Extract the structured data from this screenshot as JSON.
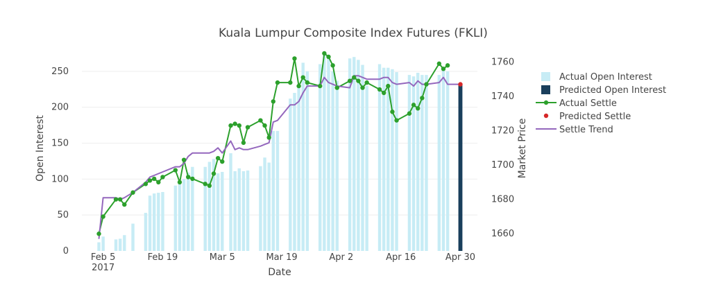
{
  "chart_data": {
    "type": "bar",
    "title": "Kuala Lumpur Composite Index Futures (FKLI)",
    "xlabel": "Date",
    "ylabel": "Open Interest",
    "y2label": "Market Price",
    "x_ticks": [
      {
        "date": "2017-02-05",
        "label": "Feb 5",
        "sublabel": "2017"
      },
      {
        "date": "2017-02-19",
        "label": "Feb 19",
        "sublabel": ""
      },
      {
        "date": "2017-03-05",
        "label": "Mar 5",
        "sublabel": ""
      },
      {
        "date": "2017-03-19",
        "label": "Mar 19",
        "sublabel": ""
      },
      {
        "date": "2017-04-02",
        "label": "Apr 2",
        "sublabel": ""
      },
      {
        "date": "2017-04-16",
        "label": "Apr 16",
        "sublabel": ""
      },
      {
        "date": "2017-04-30",
        "label": "Apr 30",
        "sublabel": ""
      }
    ],
    "xlim": [
      "2017-01-31",
      "2017-05-04"
    ],
    "ylim": [
      0,
      275
    ],
    "y_ticks": [
      0,
      50,
      100,
      150,
      200,
      250
    ],
    "y2lim": [
      1650,
      1765
    ],
    "y2_ticks": [
      1660,
      1680,
      1700,
      1720,
      1740,
      1760
    ],
    "grid": true,
    "legend_position": "right",
    "legend": [
      "Actual Open Interest",
      "Predicted Open Interest",
      "Actual Settle",
      "Predicted Settle",
      "Settle Trend"
    ],
    "colors": {
      "actual_open_interest": "#c7ecf5",
      "predicted_open_interest": "#1a3f5c",
      "actual_settle": "#2ca02c",
      "predicted_settle": "#d62728",
      "settle_trend": "#9467bd"
    },
    "series": [
      {
        "name": "Actual Open Interest",
        "kind": "bar",
        "axis": "y",
        "x": [
          "2017-02-04",
          "2017-02-05",
          "2017-02-08",
          "2017-02-09",
          "2017-02-10",
          "2017-02-12",
          "2017-02-15",
          "2017-02-16",
          "2017-02-17",
          "2017-02-18",
          "2017-02-19",
          "2017-02-22",
          "2017-02-23",
          "2017-02-24",
          "2017-02-25",
          "2017-02-26",
          "2017-03-01",
          "2017-03-02",
          "2017-03-03",
          "2017-03-04",
          "2017-03-05",
          "2017-03-07",
          "2017-03-08",
          "2017-03-09",
          "2017-03-10",
          "2017-03-11",
          "2017-03-14",
          "2017-03-15",
          "2017-03-16",
          "2017-03-17",
          "2017-03-18",
          "2017-03-21",
          "2017-03-22",
          "2017-03-23",
          "2017-03-24",
          "2017-03-25",
          "2017-03-28",
          "2017-03-29",
          "2017-03-30",
          "2017-03-31",
          "2017-04-01",
          "2017-04-04",
          "2017-04-05",
          "2017-04-06",
          "2017-04-07",
          "2017-04-08",
          "2017-04-11",
          "2017-04-12",
          "2017-04-13",
          "2017-04-14",
          "2017-04-15",
          "2017-04-18",
          "2017-04-19",
          "2017-04-20",
          "2017-04-21",
          "2017-04-22",
          "2017-04-25",
          "2017-04-26",
          "2017-04-27"
        ],
        "values": [
          12,
          20,
          16,
          17,
          22,
          38,
          53,
          77,
          80,
          81,
          82,
          91,
          96,
          100,
          109,
          117,
          117,
          124,
          128,
          108,
          110,
          136,
          111,
          115,
          111,
          112,
          118,
          130,
          123,
          167,
          167,
          212,
          220,
          228,
          262,
          250,
          260,
          272,
          270,
          250,
          237,
          268,
          270,
          266,
          259,
          230,
          260,
          255,
          255,
          253,
          249,
          245,
          243,
          248,
          245,
          245,
          245,
          252,
          250
        ]
      },
      {
        "name": "Predicted Open Interest",
        "kind": "bar",
        "axis": "y",
        "x": [
          "2017-04-30"
        ],
        "values": [
          232
        ]
      },
      {
        "name": "Actual Settle",
        "kind": "line+markers",
        "axis": "y2",
        "x": [
          "2017-02-04",
          "2017-02-05",
          "2017-02-08",
          "2017-02-09",
          "2017-02-10",
          "2017-02-12",
          "2017-02-15",
          "2017-02-16",
          "2017-02-17",
          "2017-02-18",
          "2017-02-19",
          "2017-02-22",
          "2017-02-23",
          "2017-02-24",
          "2017-02-25",
          "2017-02-26",
          "2017-03-01",
          "2017-03-02",
          "2017-03-03",
          "2017-03-04",
          "2017-03-05",
          "2017-03-07",
          "2017-03-08",
          "2017-03-09",
          "2017-03-10",
          "2017-03-11",
          "2017-03-14",
          "2017-03-15",
          "2017-03-16",
          "2017-03-17",
          "2017-03-18",
          "2017-03-21",
          "2017-03-22",
          "2017-03-23",
          "2017-03-24",
          "2017-03-25",
          "2017-03-28",
          "2017-03-29",
          "2017-03-30",
          "2017-03-31",
          "2017-04-01",
          "2017-04-04",
          "2017-04-05",
          "2017-04-06",
          "2017-04-07",
          "2017-04-08",
          "2017-04-11",
          "2017-04-12",
          "2017-04-13",
          "2017-04-14",
          "2017-04-15",
          "2017-04-18",
          "2017-04-19",
          "2017-04-20",
          "2017-04-21",
          "2017-04-22",
          "2017-04-25",
          "2017-04-26",
          "2017-04-27"
        ],
        "values": [
          1660,
          1670,
          1680,
          1680,
          1677,
          1684,
          1689,
          1691,
          1692,
          1690,
          1693,
          1697,
          1690,
          1703,
          1693,
          1692,
          1689,
          1688,
          1695,
          1704,
          1702,
          1723,
          1724,
          1723,
          1713,
          1722,
          1726,
          1723,
          1716,
          1737,
          1748,
          1748,
          1762,
          1746,
          1751,
          1748,
          1746,
          1765,
          1763,
          1758,
          1745,
          1749,
          1751,
          1749,
          1745,
          1748,
          1744,
          1742,
          1746,
          1731,
          1726,
          1730,
          1735,
          1733,
          1739,
          1747,
          1759,
          1756,
          1758
        ]
      },
      {
        "name": "Predicted Settle",
        "kind": "markers",
        "axis": "y2",
        "x": [
          "2017-04-30"
        ],
        "values": [
          1747
        ]
      },
      {
        "name": "Settle Trend",
        "kind": "line",
        "axis": "y2",
        "x": [
          "2017-02-04",
          "2017-02-05",
          "2017-02-08",
          "2017-02-09",
          "2017-02-10",
          "2017-02-12",
          "2017-02-15",
          "2017-02-16",
          "2017-02-17",
          "2017-02-18",
          "2017-02-19",
          "2017-02-22",
          "2017-02-23",
          "2017-02-24",
          "2017-02-25",
          "2017-02-26",
          "2017-03-01",
          "2017-03-02",
          "2017-03-03",
          "2017-03-04",
          "2017-03-05",
          "2017-03-07",
          "2017-03-08",
          "2017-03-09",
          "2017-03-10",
          "2017-03-11",
          "2017-03-14",
          "2017-03-15",
          "2017-03-16",
          "2017-03-17",
          "2017-03-18",
          "2017-03-21",
          "2017-03-22",
          "2017-03-23",
          "2017-03-24",
          "2017-03-25",
          "2017-03-28",
          "2017-03-29",
          "2017-03-30",
          "2017-03-31",
          "2017-04-01",
          "2017-04-04",
          "2017-04-05",
          "2017-04-06",
          "2017-04-07",
          "2017-04-08",
          "2017-04-11",
          "2017-04-12",
          "2017-04-13",
          "2017-04-14",
          "2017-04-15",
          "2017-04-18",
          "2017-04-19",
          "2017-04-20",
          "2017-04-21",
          "2017-04-22",
          "2017-04-25",
          "2017-04-26",
          "2017-04-27",
          "2017-04-30"
        ],
        "values": [
          1657,
          1681,
          1681,
          1680,
          1681,
          1684,
          1690,
          1693,
          1694,
          1695,
          1696,
          1699,
          1699,
          1701,
          1705,
          1707,
          1707,
          1707,
          1708,
          1710,
          1707,
          1714,
          1709,
          1710,
          1709,
          1709,
          1711,
          1712,
          1713,
          1725,
          1726,
          1735,
          1735,
          1737,
          1742,
          1746,
          1746,
          1751,
          1748,
          1747,
          1746,
          1745,
          1752,
          1752,
          1751,
          1750,
          1750,
          1751,
          1751,
          1748,
          1747,
          1748,
          1746,
          1749,
          1747,
          1747,
          1748,
          1751,
          1747,
          1747
        ]
      }
    ]
  }
}
